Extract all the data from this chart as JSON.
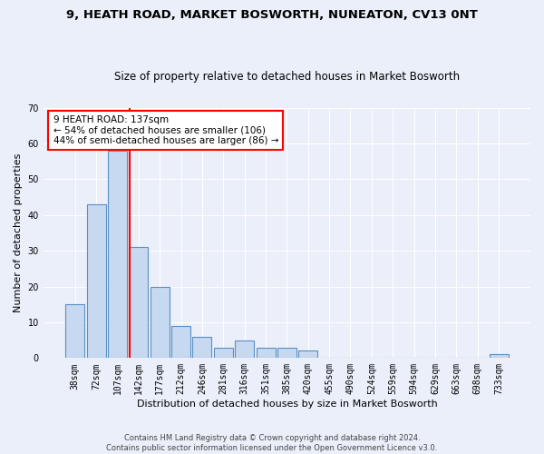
{
  "title1": "9, HEATH ROAD, MARKET BOSWORTH, NUNEATON, CV13 0NT",
  "title2": "Size of property relative to detached houses in Market Bosworth",
  "xlabel": "Distribution of detached houses by size in Market Bosworth",
  "ylabel": "Number of detached properties",
  "footnote": "Contains HM Land Registry data © Crown copyright and database right 2024.\nContains public sector information licensed under the Open Government Licence v3.0.",
  "bar_labels": [
    "38sqm",
    "72sqm",
    "107sqm",
    "142sqm",
    "177sqm",
    "212sqm",
    "246sqm",
    "281sqm",
    "316sqm",
    "351sqm",
    "385sqm",
    "420sqm",
    "455sqm",
    "490sqm",
    "524sqm",
    "559sqm",
    "594sqm",
    "629sqm",
    "663sqm",
    "698sqm",
    "733sqm"
  ],
  "bar_values": [
    15,
    43,
    58,
    31,
    20,
    9,
    6,
    3,
    5,
    3,
    3,
    2,
    0,
    0,
    0,
    0,
    0,
    0,
    0,
    0,
    1
  ],
  "bar_color": "#c6d9f0",
  "bar_edge_color": "#5a8fc2",
  "vline_color": "red",
  "vline_x_index": 2.57,
  "annotation_text": "9 HEATH ROAD: 137sqm\n← 54% of detached houses are smaller (106)\n44% of semi-detached houses are larger (86) →",
  "annotation_box_color": "white",
  "annotation_box_edge": "red",
  "ylim": [
    0,
    70
  ],
  "yticks": [
    0,
    10,
    20,
    30,
    40,
    50,
    60,
    70
  ],
  "bg_color": "#eaeff9",
  "plot_bg": "#eaeff9",
  "grid_color": "white",
  "title1_fontsize": 9.5,
  "title2_fontsize": 8.5,
  "xlabel_fontsize": 8,
  "ylabel_fontsize": 8,
  "tick_fontsize": 7,
  "annot_fontsize": 7.5
}
